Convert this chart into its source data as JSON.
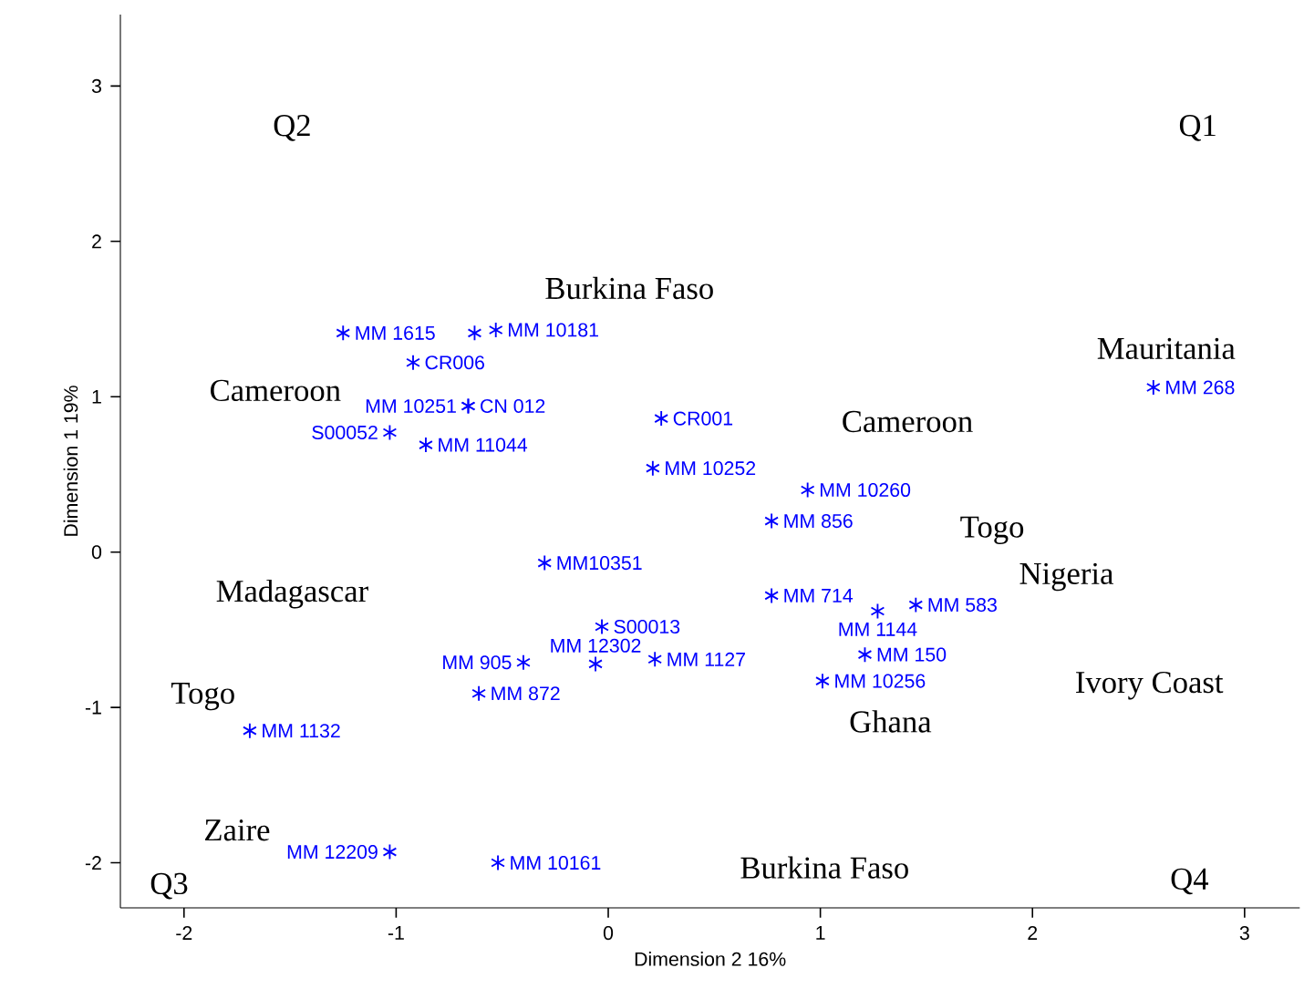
{
  "chart_data": {
    "type": "scatter",
    "xlabel": "Dimension 2  16%",
    "ylabel": "Dimension 1  19%",
    "xlim": [
      -2.3,
      3.26
    ],
    "ylim": [
      -2.29,
      3.46
    ],
    "xticks": [
      -2,
      -1,
      0,
      1,
      2,
      3
    ],
    "yticks": [
      -2,
      -1,
      0,
      1,
      2,
      3
    ],
    "marker": "cross",
    "color": "#0000ff",
    "x": [
      -1.25,
      -0.63,
      -0.53,
      -0.92,
      -0.66,
      -0.66,
      -1.03,
      -0.86,
      0.25,
      0.21,
      0.94,
      0.77,
      2.57,
      -0.3,
      0.77,
      1.27,
      1.45,
      -0.03,
      -0.4,
      -0.06,
      0.22,
      1.21,
      1.01,
      -0.61,
      -1.69,
      -1.03,
      -0.52
    ],
    "values": [
      1.41,
      1.41,
      1.43,
      1.22,
      0.94,
      0.94,
      0.77,
      0.69,
      0.86,
      0.54,
      0.4,
      0.2,
      1.06,
      -0.07,
      -0.28,
      -0.38,
      -0.34,
      -0.48,
      -0.71,
      -0.72,
      -0.69,
      -0.66,
      -0.83,
      -0.91,
      -1.15,
      -1.93,
      -2.0
    ],
    "value_labels": [
      "MM 1615",
      null,
      "MM 10181",
      "CR006",
      "CN 012",
      "MM 10251",
      "S00052",
      "MM 11044",
      "CR001",
      "MM 10252",
      "MM 10260",
      "MM 856",
      "MM 268",
      "MM10351",
      "MM 714",
      "MM 1144",
      "MM 583",
      "S00013",
      "MM 905",
      "MM 12302",
      "MM 1127",
      "MM 150",
      "MM 10256",
      "MM 872",
      "MM 1132",
      "MM 12209",
      "MM 10161"
    ],
    "annotations": [
      "Q2",
      "Q1",
      "Burkina Faso",
      "Mauritania",
      "Cameroon",
      "Cameroon",
      "Togo",
      "Nigeria",
      "Madagascar",
      "Ivory Coast",
      "Togo",
      "Ghana",
      "Zaire",
      "Burkina Faso",
      "Q3",
      "Q4"
    ]
  }
}
